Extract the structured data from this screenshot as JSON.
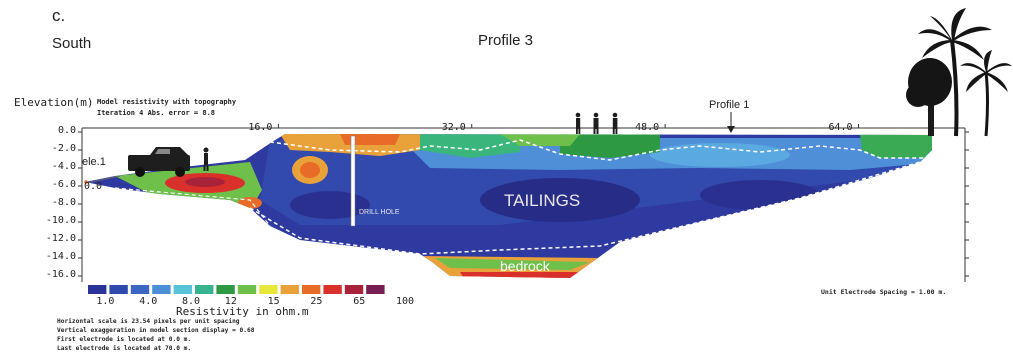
{
  "chart_data": {
    "type": "heatmap",
    "panel_letter": "c.",
    "direction_label": "South",
    "title": "Profile 3",
    "ylabel": "Elevation(m)",
    "plot_label": "Model resistivity with topography",
    "iteration_label": "Iteration 4 Abs. error = 8.8",
    "y_ticks": [
      "0.0",
      "-2.0",
      "-4.0",
      "-6.0",
      "-8.0",
      "-10.0",
      "-12.0",
      "-14.0",
      "-16.0"
    ],
    "x_ticks": [
      "16.0",
      "32.0",
      "48.0",
      "64.0"
    ],
    "ylim": [
      -16,
      0
    ],
    "xlim": [
      0,
      70
    ],
    "annotations": {
      "profile_marker": "Profile 1",
      "electrode_label": "ele.1",
      "electrode_elevation": "0.0",
      "zone_label": "TAILINGS",
      "drill_label": "DRILL HOLE",
      "base_label": "bedrock"
    },
    "colorbar": {
      "title": "Resistivity in ohm.m",
      "tick_labels": [
        "1.0",
        "4.0",
        "8.0",
        "12",
        "15",
        "25",
        "65",
        "100"
      ],
      "colors": [
        "#2a3397",
        "#2f49ac",
        "#3b66c2",
        "#4b8fd6",
        "#58c3d9",
        "#36b38f",
        "#2d9a43",
        "#6fc04a",
        "#e8e83a",
        "#e9a23a",
        "#e86b28",
        "#d9302b",
        "#a8223a",
        "#7a1f53"
      ]
    },
    "footnotes": [
      "Horizontal scale is 23.54 pixels per unit spacing",
      "Vertical exaggeration in model section display = 0.68",
      "First electrode is located at 0.0 m.",
      "Last electrode is located at 70.0 m."
    ],
    "unit_electrode_spacing": "Unit Electrode Spacing = 1.00 m."
  }
}
